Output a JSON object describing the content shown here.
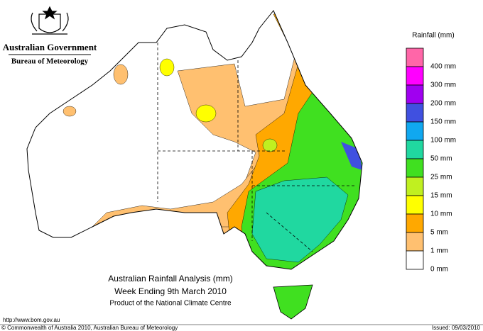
{
  "header": {
    "government": "Australian Government",
    "bureau": "Bureau of Meteorology"
  },
  "legend": {
    "title": "Rainfall (mm)",
    "items": [
      {
        "label": "400 mm",
        "color": "#ff66a8"
      },
      {
        "label": "300 mm",
        "color": "#ff00ff"
      },
      {
        "label": "200 mm",
        "color": "#a000f0"
      },
      {
        "label": "150 mm",
        "color": "#4050e0"
      },
      {
        "label": "100 mm",
        "color": "#10a8f0"
      },
      {
        "label": "50 mm",
        "color": "#20d8a0"
      },
      {
        "label": "25 mm",
        "color": "#40e020"
      },
      {
        "label": "15 mm",
        "color": "#c0f020"
      },
      {
        "label": "10 mm",
        "color": "#ffff00"
      },
      {
        "label": "5 mm",
        "color": "#ffa800"
      },
      {
        "label": "1 mm",
        "color": "#ffc070"
      },
      {
        "label": "0 mm",
        "color": "#ffffff"
      }
    ]
  },
  "caption": {
    "title": "Australian Rainfall Analysis (mm)",
    "subtitle": "Week Ending 9th March 2010",
    "credit": "Product of the National Climate Centre"
  },
  "footer": {
    "url": "http://www.bom.gov.au",
    "copyright": "© Commonwealth of Australia 2010, Australian Bureau of Meteorology",
    "issued": "Issued: 09/03/2010"
  }
}
